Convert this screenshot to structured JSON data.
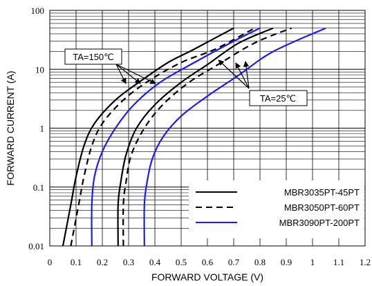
{
  "chart_data": {
    "type": "line",
    "xlabel": "FORWARD VOLTAGE (V)",
    "ylabel": "FORWARD CURRENT (A)",
    "xlim": [
      0,
      1.2
    ],
    "ylim": [
      0.01,
      100
    ],
    "yscale": "log",
    "grid": true,
    "legend_position": "bottom-right",
    "x_ticks": [
      "0",
      "0.1",
      "0.2",
      "0.3",
      "0.4",
      "0.5",
      "0.6",
      "0.7",
      "0.8",
      "0.9",
      "1",
      "1.1",
      "1.2"
    ],
    "y_ticks": [
      "0.01",
      "0.1",
      "1",
      "10",
      "100"
    ],
    "legend": [
      {
        "label": "MBR3035PT-45PT",
        "style": "solid",
        "color": "#000000"
      },
      {
        "label": "MBR3050PT-60PT",
        "style": "dashed",
        "color": "#000000"
      },
      {
        "label": "MBR3090PT-200PT",
        "style": "solid",
        "color": "#1a1aff"
      }
    ],
    "annotations": [
      {
        "text": "TA=150℃"
      },
      {
        "text": "TA=25℃"
      }
    ],
    "series": [
      {
        "legend": 0,
        "condition": 0,
        "style": "solid",
        "color": "#000000",
        "points": [
          [
            0.05,
            0.01
          ],
          [
            0.08,
            0.05
          ],
          [
            0.1,
            0.15
          ],
          [
            0.13,
            0.5
          ],
          [
            0.17,
            1.2
          ],
          [
            0.25,
            3
          ],
          [
            0.35,
            6.5
          ],
          [
            0.45,
            13
          ],
          [
            0.55,
            22
          ],
          [
            0.7,
            50
          ]
        ]
      },
      {
        "legend": 1,
        "condition": 0,
        "style": "dashed",
        "color": "#000000",
        "points": [
          [
            0.08,
            0.01
          ],
          [
            0.11,
            0.05
          ],
          [
            0.13,
            0.15
          ],
          [
            0.16,
            0.5
          ],
          [
            0.2,
            1.2
          ],
          [
            0.28,
            3
          ],
          [
            0.38,
            6.5
          ],
          [
            0.5,
            13
          ],
          [
            0.63,
            22
          ],
          [
            0.78,
            50
          ]
        ]
      },
      {
        "legend": 2,
        "condition": 0,
        "style": "solid",
        "color": "#1a1aff",
        "points": [
          [
            0.16,
            0.01
          ],
          [
            0.16,
            0.05
          ],
          [
            0.17,
            0.15
          ],
          [
            0.2,
            0.4
          ],
          [
            0.25,
            1
          ],
          [
            0.32,
            2.5
          ],
          [
            0.42,
            6
          ],
          [
            0.55,
            13
          ],
          [
            0.7,
            30
          ],
          [
            0.8,
            50
          ]
        ]
      },
      {
        "legend": 0,
        "condition": 1,
        "style": "solid",
        "color": "#000000",
        "points": [
          [
            0.26,
            0.01
          ],
          [
            0.26,
            0.05
          ],
          [
            0.27,
            0.12
          ],
          [
            0.29,
            0.35
          ],
          [
            0.33,
            1
          ],
          [
            0.4,
            2.5
          ],
          [
            0.5,
            6
          ],
          [
            0.6,
            12
          ],
          [
            0.72,
            28
          ],
          [
            0.85,
            50
          ]
        ]
      },
      {
        "legend": 1,
        "condition": 1,
        "style": "dashed",
        "color": "#000000",
        "points": [
          [
            0.28,
            0.01
          ],
          [
            0.28,
            0.05
          ],
          [
            0.29,
            0.12
          ],
          [
            0.31,
            0.35
          ],
          [
            0.36,
            1
          ],
          [
            0.43,
            2.5
          ],
          [
            0.53,
            6
          ],
          [
            0.64,
            12
          ],
          [
            0.78,
            28
          ],
          [
            0.92,
            50
          ]
        ]
      },
      {
        "legend": 2,
        "condition": 1,
        "style": "solid",
        "color": "#1a1aff",
        "points": [
          [
            0.36,
            0.01
          ],
          [
            0.36,
            0.05
          ],
          [
            0.37,
            0.12
          ],
          [
            0.39,
            0.3
          ],
          [
            0.43,
            0.7
          ],
          [
            0.5,
            1.6
          ],
          [
            0.6,
            3.5
          ],
          [
            0.72,
            8
          ],
          [
            0.85,
            20
          ],
          [
            1.05,
            50
          ]
        ]
      }
    ]
  }
}
